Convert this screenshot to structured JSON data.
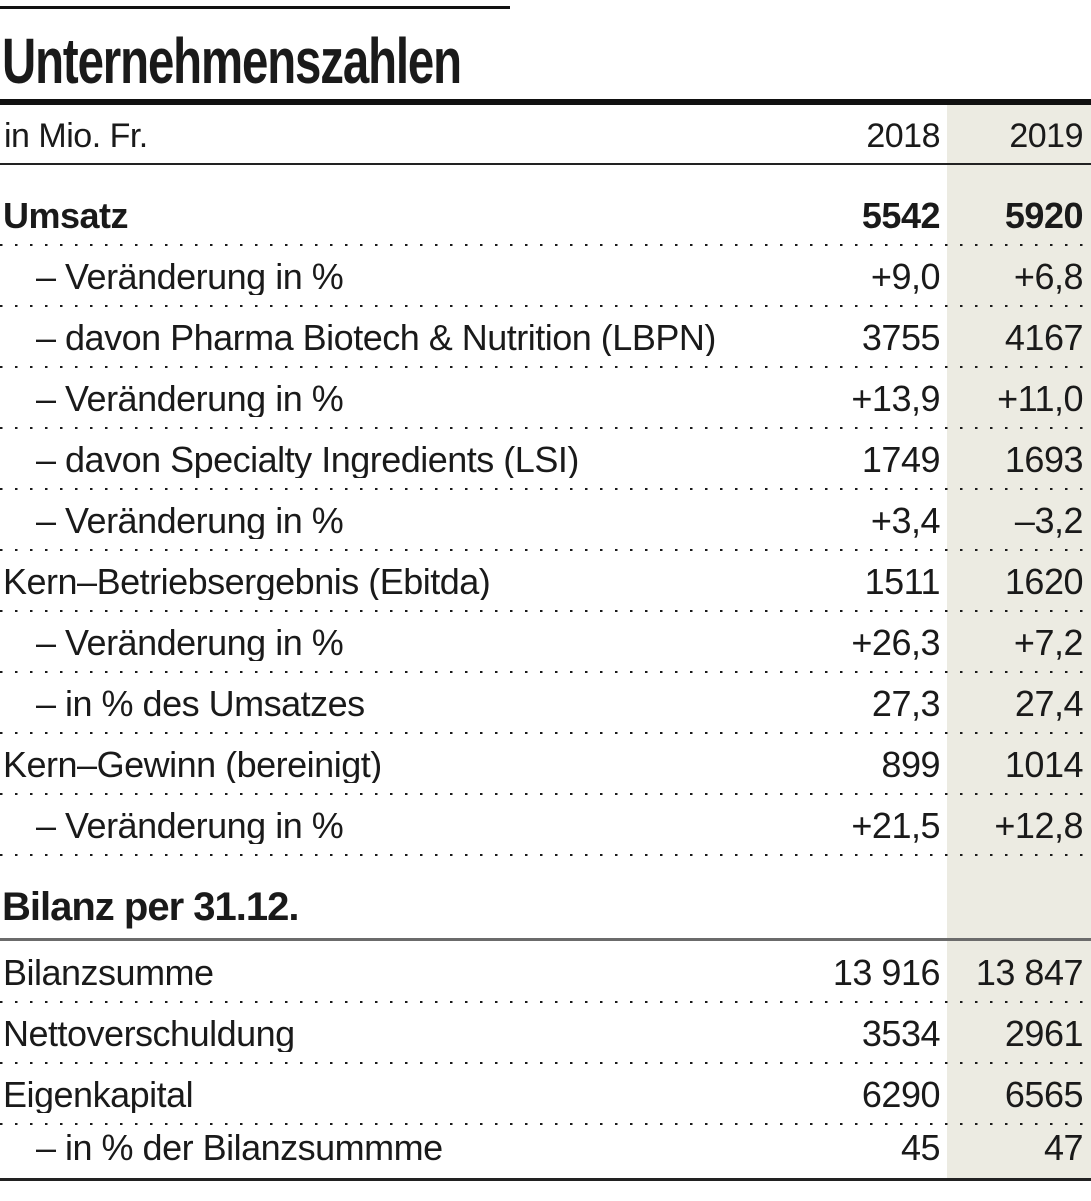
{
  "chart_data": {
    "type": "table",
    "title": "Unternehmenszahlen",
    "unit_label": "in Mio. Fr.",
    "col_headers": [
      "2018",
      "2019"
    ],
    "highlight_column": "2019",
    "highlight_color": "#ECEBE2",
    "rows": [
      {
        "label": "Umsatz",
        "y2018": "5542",
        "y2019": "5920"
      },
      {
        "label": "– Veränderung in %",
        "y2018": "+9,0",
        "y2019": "+6,8"
      },
      {
        "label": "– davon Pharma Biotech & Nutrition (LBPN)",
        "y2018": "3755",
        "y2019": "4167"
      },
      {
        "label": "– Veränderung in %",
        "y2018": "+13,9",
        "y2019": "+11,0"
      },
      {
        "label": "– davon Specialty Ingredients (LSI)",
        "y2018": "1749",
        "y2019": "1693"
      },
      {
        "label": "– Veränderung in %",
        "y2018": "+3,4",
        "y2019": "–3,2"
      },
      {
        "label": "Kern–Betriebsergebnis (Ebitda)",
        "y2018": "1511",
        "y2019": "1620"
      },
      {
        "label": "– Veränderung in %",
        "y2018": "+26,3",
        "y2019": "+7,2"
      },
      {
        "label": "– in % des Umsatzes",
        "y2018": "27,3",
        "y2019": "27,4"
      },
      {
        "label": "Kern–Gewinn (bereinigt)",
        "y2018": "899",
        "y2019": "1014"
      },
      {
        "label": "– Veränderung in %",
        "y2018": "+21,5",
        "y2019": "+12,8"
      }
    ],
    "section2_heading": "Bilanz per 31.12.",
    "rows2": [
      {
        "label": "Bilanzsumme",
        "y2018": "13 916",
        "y2019": "13 847"
      },
      {
        "label": "Nettoverschuldung",
        "y2018": "3534",
        "y2019": "2961"
      },
      {
        "label": "Eigenkapital",
        "y2018": "6290",
        "y2019": "6565"
      },
      {
        "label": "– in % der Bilanzsummme",
        "y2018": "45",
        "y2019": "47"
      }
    ]
  }
}
